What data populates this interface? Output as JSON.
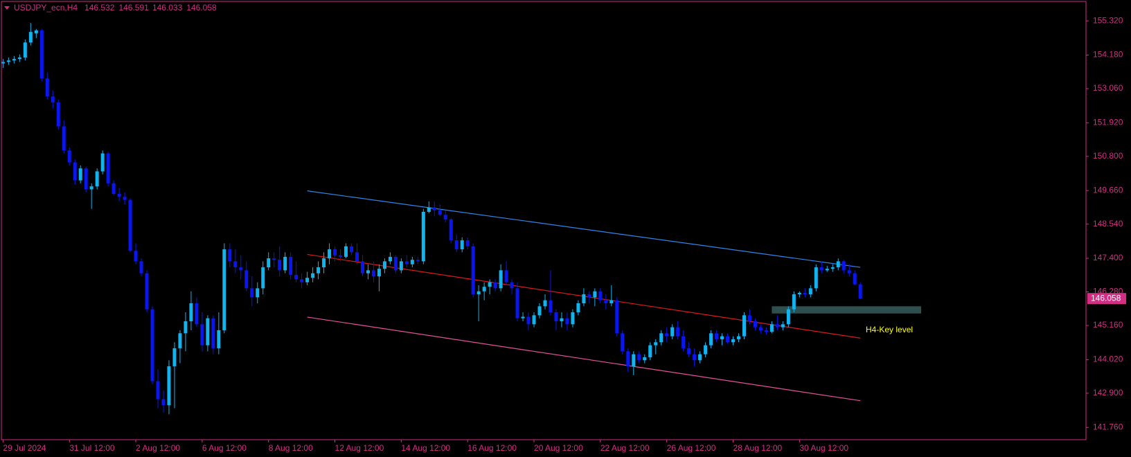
{
  "chart_data": {
    "type": "candlestick",
    "title": "USDJPY_ecn,H4",
    "up_color": "#12b4f0",
    "down_color": "#0a16f0",
    "axis_color": "#d42d84",
    "xlim": [
      -0.3,
      195.8
    ],
    "ylim": [
      141.35,
      155.97
    ],
    "xticks": [
      {
        "value": 0,
        "label": "29 Jul 2024"
      },
      {
        "value": 12,
        "label": "31 Jul 12:00"
      },
      {
        "value": 24,
        "label": "2 Aug 12:00"
      },
      {
        "value": 36,
        "label": "6 Aug 12:00"
      },
      {
        "value": 48,
        "label": "8 Aug 12:00"
      },
      {
        "value": 60,
        "label": "12 Aug 12:00"
      },
      {
        "value": 72,
        "label": "14 Aug 12:00"
      },
      {
        "value": 84,
        "label": "16 Aug 12:00"
      },
      {
        "value": 96,
        "label": "20 Aug 12:00"
      },
      {
        "value": 108,
        "label": "22 Aug 12:00"
      },
      {
        "value": 120,
        "label": "26 Aug 12:00"
      },
      {
        "value": 132,
        "label": "28 Aug 12:00"
      },
      {
        "value": 144,
        "label": "30 Aug 12:00"
      }
    ],
    "yticks": [
      {
        "value": 155.32,
        "label": "155.320"
      },
      {
        "value": 154.18,
        "label": "154.180"
      },
      {
        "value": 153.06,
        "label": "153.060"
      },
      {
        "value": 151.92,
        "label": "151.920"
      },
      {
        "value": 150.8,
        "label": "150.800"
      },
      {
        "value": 149.66,
        "label": "149.660"
      },
      {
        "value": 148.54,
        "label": "148.540"
      },
      {
        "value": 147.4,
        "label": "147.400"
      },
      {
        "value": 146.28,
        "label": "146.280"
      },
      {
        "value": 145.16,
        "label": "145.160"
      },
      {
        "value": 144.02,
        "label": "144.020"
      },
      {
        "value": 142.9,
        "label": "142.900"
      },
      {
        "value": 141.76,
        "label": "141.760"
      }
    ],
    "candles": [
      [
        153.9,
        154.05,
        153.75,
        153.95
      ],
      [
        153.95,
        154.1,
        153.85,
        154.0
      ],
      [
        154.0,
        154.15,
        153.9,
        154.05
      ],
      [
        154.05,
        154.2,
        153.95,
        154.1
      ],
      [
        154.1,
        154.7,
        154.0,
        154.6
      ],
      [
        154.6,
        155.25,
        154.5,
        154.95
      ],
      [
        154.9,
        155.05,
        154.75,
        155.0
      ],
      [
        155.0,
        155.05,
        153.3,
        153.4
      ],
      [
        153.4,
        153.6,
        152.7,
        152.8
      ],
      [
        152.8,
        153.0,
        152.4,
        152.6
      ],
      [
        152.6,
        152.7,
        151.7,
        151.8
      ],
      [
        151.8,
        152.0,
        150.9,
        151.0
      ],
      [
        151.0,
        151.1,
        150.5,
        150.6
      ],
      [
        150.6,
        150.7,
        149.85,
        150.0
      ],
      [
        150.0,
        150.5,
        149.9,
        150.4
      ],
      [
        150.4,
        150.45,
        149.6,
        149.7
      ],
      [
        149.7,
        149.9,
        149.05,
        149.8
      ],
      [
        149.8,
        150.4,
        149.7,
        150.3
      ],
      [
        150.3,
        151.0,
        150.2,
        150.9
      ],
      [
        150.9,
        150.95,
        149.8,
        149.9
      ],
      [
        149.9,
        150.0,
        149.5,
        149.55
      ],
      [
        149.55,
        149.75,
        149.3,
        149.45
      ],
      [
        149.45,
        149.6,
        149.2,
        149.35
      ],
      [
        149.35,
        149.4,
        147.6,
        147.65
      ],
      [
        147.65,
        147.9,
        147.2,
        147.3
      ],
      [
        147.3,
        147.4,
        146.8,
        146.9
      ],
      [
        146.9,
        147.0,
        145.6,
        145.7
      ],
      [
        145.7,
        145.8,
        143.2,
        143.3
      ],
      [
        143.3,
        143.7,
        142.4,
        142.7
      ],
      [
        142.7,
        143.0,
        142.25,
        142.5
      ],
      [
        142.5,
        144.0,
        142.2,
        143.8
      ],
      [
        143.8,
        144.6,
        142.4,
        144.4
      ],
      [
        144.4,
        145.0,
        143.9,
        144.9
      ],
      [
        144.9,
        145.6,
        144.3,
        145.3
      ],
      [
        145.3,
        146.3,
        145.0,
        145.9
      ],
      [
        145.9,
        146.1,
        145.1,
        145.2
      ],
      [
        145.2,
        145.6,
        144.3,
        144.5
      ],
      [
        144.5,
        145.5,
        144.3,
        145.4
      ],
      [
        145.4,
        145.5,
        144.2,
        144.4
      ],
      [
        144.4,
        145.6,
        144.2,
        145.0
      ],
      [
        145.0,
        147.9,
        144.9,
        147.7
      ],
      [
        147.7,
        147.9,
        147.1,
        147.3
      ],
      [
        147.3,
        147.7,
        146.9,
        147.1
      ],
      [
        147.1,
        147.5,
        146.7,
        147.0
      ],
      [
        147.0,
        147.3,
        146.3,
        146.4
      ],
      [
        146.4,
        146.8,
        145.8,
        146.1
      ],
      [
        146.1,
        146.6,
        145.9,
        146.4
      ],
      [
        146.4,
        147.3,
        146.2,
        147.1
      ],
      [
        147.1,
        147.6,
        147.0,
        147.4
      ],
      [
        147.4,
        147.6,
        147.1,
        147.35
      ],
      [
        147.35,
        147.8,
        146.8,
        147.0
      ],
      [
        147.0,
        147.6,
        146.9,
        147.45
      ],
      [
        147.45,
        147.6,
        146.7,
        146.85
      ],
      [
        146.85,
        147.3,
        146.6,
        146.7
      ],
      [
        146.7,
        146.9,
        146.4,
        146.6
      ],
      [
        146.6,
        146.95,
        146.5,
        146.75
      ],
      [
        146.75,
        147.1,
        146.6,
        146.9
      ],
      [
        146.9,
        147.3,
        146.7,
        147.1
      ],
      [
        147.1,
        147.6,
        146.9,
        147.4
      ],
      [
        147.4,
        147.9,
        147.2,
        147.7
      ],
      [
        147.7,
        147.8,
        147.3,
        147.5
      ],
      [
        147.5,
        147.7,
        147.3,
        147.45
      ],
      [
        147.45,
        147.9,
        147.4,
        147.8
      ],
      [
        147.8,
        147.9,
        147.5,
        147.6
      ],
      [
        147.6,
        147.9,
        147.2,
        147.3
      ],
      [
        147.3,
        147.5,
        146.8,
        146.9
      ],
      [
        146.9,
        147.2,
        146.7,
        147.0
      ],
      [
        147.0,
        147.3,
        146.6,
        146.8
      ],
      [
        146.8,
        147.2,
        146.3,
        147.05
      ],
      [
        147.05,
        147.4,
        146.9,
        147.3
      ],
      [
        147.3,
        147.6,
        147.2,
        147.45
      ],
      [
        147.45,
        147.5,
        146.9,
        147.0
      ],
      [
        147.0,
        147.4,
        146.9,
        147.3
      ],
      [
        147.3,
        147.5,
        147.1,
        147.2
      ],
      [
        147.2,
        147.45,
        147.1,
        147.35
      ],
      [
        147.35,
        147.45,
        147.2,
        147.3
      ],
      [
        147.3,
        149.05,
        147.2,
        148.95
      ],
      [
        148.95,
        149.3,
        148.9,
        149.1
      ],
      [
        149.1,
        149.3,
        148.8,
        149.0
      ],
      [
        149.0,
        149.2,
        148.8,
        148.85
      ],
      [
        148.85,
        149.0,
        148.6,
        148.7
      ],
      [
        148.7,
        148.75,
        147.9,
        148.0
      ],
      [
        148.0,
        148.2,
        147.6,
        147.7
      ],
      [
        147.7,
        148.1,
        147.6,
        148.0
      ],
      [
        148.0,
        148.1,
        147.7,
        147.8
      ],
      [
        147.8,
        147.9,
        146.1,
        146.2
      ],
      [
        146.2,
        146.5,
        145.3,
        146.3
      ],
      [
        146.3,
        146.6,
        146.0,
        146.45
      ],
      [
        146.45,
        146.7,
        146.2,
        146.6
      ],
      [
        146.6,
        146.7,
        146.3,
        146.4
      ],
      [
        146.4,
        147.2,
        146.3,
        147.0
      ],
      [
        147.0,
        147.3,
        146.5,
        146.6
      ],
      [
        146.6,
        146.7,
        146.2,
        146.4
      ],
      [
        146.4,
        146.6,
        145.3,
        145.4
      ],
      [
        145.4,
        145.6,
        145.3,
        145.45
      ],
      [
        145.45,
        145.6,
        145.0,
        145.2
      ],
      [
        145.2,
        145.6,
        145.1,
        145.5
      ],
      [
        145.5,
        145.9,
        145.4,
        145.8
      ],
      [
        145.8,
        146.2,
        145.7,
        146.0
      ],
      [
        146.0,
        147.0,
        145.5,
        145.6
      ],
      [
        145.6,
        145.7,
        145.0,
        145.3
      ],
      [
        145.3,
        145.6,
        145.1,
        145.4
      ],
      [
        145.4,
        145.6,
        145.0,
        145.2
      ],
      [
        145.2,
        145.7,
        145.1,
        145.6
      ],
      [
        145.6,
        146.0,
        145.5,
        145.9
      ],
      [
        145.9,
        146.4,
        145.8,
        146.2
      ],
      [
        146.2,
        146.3,
        145.9,
        146.1
      ],
      [
        146.1,
        146.4,
        145.8,
        146.3
      ],
      [
        146.3,
        146.4,
        145.9,
        146.0
      ],
      [
        146.0,
        146.2,
        145.7,
        145.9
      ],
      [
        145.9,
        146.5,
        145.8,
        146.0
      ],
      [
        146.0,
        146.1,
        144.8,
        144.9
      ],
      [
        144.9,
        145.0,
        144.2,
        144.3
      ],
      [
        144.3,
        144.4,
        143.6,
        143.8
      ],
      [
        143.8,
        144.3,
        143.5,
        144.2
      ],
      [
        144.2,
        144.3,
        143.9,
        144.0
      ],
      [
        144.0,
        144.2,
        143.9,
        144.1
      ],
      [
        144.1,
        144.6,
        144.0,
        144.5
      ],
      [
        144.5,
        144.7,
        144.2,
        144.6
      ],
      [
        144.6,
        145.0,
        144.5,
        144.9
      ],
      [
        144.9,
        145.1,
        144.6,
        144.8
      ],
      [
        144.8,
        145.2,
        144.7,
        145.1
      ],
      [
        145.1,
        145.3,
        144.7,
        144.8
      ],
      [
        144.8,
        145.0,
        144.3,
        144.4
      ],
      [
        144.4,
        144.6,
        144.1,
        144.2
      ],
      [
        144.2,
        144.4,
        143.8,
        144.0
      ],
      [
        144.0,
        144.3,
        143.9,
        144.2
      ],
      [
        144.2,
        144.6,
        144.1,
        144.5
      ],
      [
        144.5,
        145.0,
        144.4,
        144.9
      ],
      [
        144.9,
        145.0,
        144.6,
        144.7
      ],
      [
        144.7,
        144.9,
        144.5,
        144.8
      ],
      [
        144.8,
        144.9,
        144.55,
        144.6
      ],
      [
        144.6,
        144.8,
        144.5,
        144.7
      ],
      [
        144.7,
        144.9,
        144.6,
        144.8
      ],
      [
        144.8,
        145.6,
        144.7,
        145.5
      ],
      [
        145.5,
        145.7,
        145.2,
        145.3
      ],
      [
        145.3,
        145.4,
        145.0,
        145.1
      ],
      [
        145.1,
        145.2,
        144.9,
        145.0
      ],
      [
        145.0,
        145.1,
        144.85,
        144.95
      ],
      [
        144.95,
        145.3,
        144.9,
        145.2
      ],
      [
        145.2,
        145.5,
        145.0,
        145.1
      ],
      [
        145.1,
        145.3,
        145.0,
        145.2
      ],
      [
        145.2,
        145.8,
        145.1,
        145.7
      ],
      [
        145.7,
        146.3,
        145.6,
        146.2
      ],
      [
        146.2,
        146.3,
        146.1,
        146.25
      ],
      [
        146.25,
        146.4,
        146.1,
        146.2
      ],
      [
        146.2,
        146.5,
        146.1,
        146.4
      ],
      [
        146.4,
        147.2,
        146.3,
        147.1
      ],
      [
        147.1,
        147.3,
        146.9,
        147.0
      ],
      [
        147.0,
        147.15,
        146.95,
        147.05
      ],
      [
        147.05,
        147.2,
        146.95,
        147.1
      ],
      [
        147.1,
        147.4,
        147.0,
        147.3
      ],
      [
        147.3,
        147.35,
        146.9,
        147.0
      ],
      [
        147.0,
        147.2,
        146.8,
        146.9
      ],
      [
        146.9,
        147.0,
        146.5,
        146.532
      ],
      [
        146.532,
        146.591,
        146.033,
        146.058
      ]
    ],
    "channels": [
      {
        "color": "#2e86f0",
        "x": [
          55,
          155
        ],
        "values": [
          149.65,
          147.1
        ]
      },
      {
        "color": "#e01818",
        "x": [
          55,
          155
        ],
        "values": [
          147.53,
          144.74
        ]
      },
      {
        "color": "#e8509c",
        "x": [
          55,
          155
        ],
        "values": [
          145.44,
          142.65
        ]
      }
    ],
    "zone": {
      "x": [
        139,
        166
      ],
      "y": [
        145.56,
        145.8
      ],
      "color": "#2f4f4f",
      "label": "H4-Key level",
      "label_color": "#ffff00"
    }
  }
}
